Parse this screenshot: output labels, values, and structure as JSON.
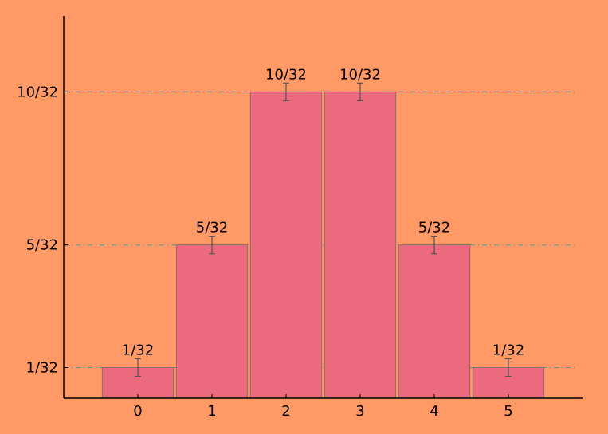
{
  "chart_data": {
    "type": "bar",
    "categories": [
      "0",
      "1",
      "2",
      "3",
      "4",
      "5"
    ],
    "values": [
      0.03125,
      0.15625,
      0.3125,
      0.3125,
      0.15625,
      0.03125
    ],
    "value_labels": [
      "1/32",
      "5/32",
      "10/32",
      "10/32",
      "5/32",
      "1/32"
    ],
    "error": [
      0.0004,
      0.0004,
      0.0004,
      0.0004,
      0.0004,
      0.0004
    ],
    "error_bars": [
      0.009,
      0.009,
      0.009,
      0.009,
      0.009,
      0.009
    ],
    "title": "",
    "xlabel": "",
    "ylabel": "",
    "x_ticks": [
      "0",
      "1",
      "2",
      "3",
      "4",
      "5"
    ],
    "y_ticks": [
      {
        "value": 0.03125,
        "label": "1/32"
      },
      {
        "value": 0.15625,
        "label": "5/32"
      },
      {
        "value": 0.3125,
        "label": "10/32"
      }
    ],
    "xlim": [
      -1,
      6
    ],
    "ylim": [
      0,
      0.39
    ],
    "grid": "horizontal dash-dot at y tick values",
    "colors": {
      "background": "#FF9966",
      "bar_fill": "#EB6A7E",
      "bar_edge": "#8C6F6F",
      "grid": "#4C9A9A",
      "error_bar": "#555555",
      "axis": "#000000"
    }
  }
}
